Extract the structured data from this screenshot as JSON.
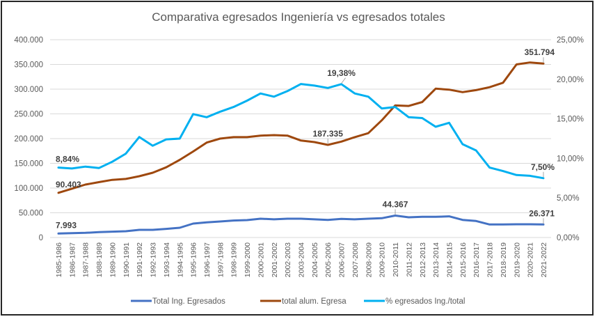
{
  "chart_data": {
    "type": "line",
    "title": "Comparativa egresados Ingeniería vs egresados totales",
    "xlabel": "",
    "ylabel": "",
    "y2label": "",
    "ylim": [
      0,
      400000
    ],
    "y2lim": [
      0,
      25
    ],
    "grid": true,
    "legend_position": "bottom",
    "y_ticks": [
      "0",
      "50.000",
      "100.000",
      "150.000",
      "200.000",
      "250.000",
      "300.000",
      "350.000",
      "400.000"
    ],
    "y2_ticks": [
      "0,00%",
      "5,00%",
      "10,00%",
      "15,00%",
      "20,00%",
      "25,00%"
    ],
    "categories": [
      "1985-1986",
      "1986-1987",
      "1987-1988",
      "1988-1989",
      "1989-1990",
      "1990-1991",
      "1991-1992",
      "1992-1993",
      "1993-1994",
      "1994-1995",
      "1995-1996",
      "1996-1997",
      "1997-1998",
      "1998-1999",
      "1999-2000",
      "2000-2001",
      "2001-2002",
      "2002-2003",
      "2003-2004",
      "2004-2005",
      "2005-2006",
      "2006-2007",
      "2007-2008",
      "2008-2009",
      "2009-2010",
      "2010-2011",
      "2011-2012",
      "2012-2013",
      "2013-2014",
      "2014-2015",
      "2015-2016",
      "2016-2017",
      "2017-2018",
      "2018-2019",
      "2019-2020",
      "2020-2021",
      "2021-2022"
    ],
    "series": [
      {
        "name": "Total Ing. Egresados",
        "axis": "left",
        "color": "#4472C4",
        "values": [
          7993,
          8900,
          9400,
          10800,
          11800,
          12700,
          15500,
          15500,
          17400,
          19700,
          28200,
          30500,
          32400,
          34300,
          35200,
          38000,
          36700,
          38000,
          38000,
          36700,
          35700,
          37600,
          36700,
          38000,
          39000,
          44367,
          40900,
          41800,
          41800,
          42800,
          35700,
          33400,
          26300,
          26300,
          26800,
          26800,
          26371
        ],
        "labels": [
          {
            "index": 0,
            "text": "7.993"
          },
          {
            "index": 25,
            "text": "44.367"
          },
          {
            "index": 36,
            "text": "26.371"
          }
        ]
      },
      {
        "name": "total alum. Egresa",
        "axis": "left",
        "color": "#9E480E",
        "values": [
          90403,
          98700,
          107000,
          112000,
          116600,
          118400,
          124000,
          131000,
          142000,
          157000,
          174000,
          192000,
          200000,
          203000,
          203000,
          206000,
          207000,
          206000,
          196000,
          193000,
          187335,
          194000,
          203000,
          211000,
          237000,
          267000,
          266000,
          274000,
          301000,
          299000,
          294000,
          298000,
          304000,
          313000,
          350000,
          354000,
          351794
        ],
        "labels": [
          {
            "index": 0,
            "text": "90.403"
          },
          {
            "index": 20,
            "text": "187.335"
          },
          {
            "index": 36,
            "text": "351.794"
          }
        ]
      },
      {
        "name": "% egresados Ing./total",
        "axis": "right",
        "color": "#00B0F0",
        "values": [
          8.84,
          8.72,
          8.96,
          8.78,
          9.58,
          10.6,
          12.7,
          11.6,
          12.4,
          12.5,
          15.6,
          15.2,
          15.9,
          16.5,
          17.3,
          18.2,
          17.8,
          18.5,
          19.4,
          19.2,
          18.9,
          19.38,
          18.2,
          17.8,
          16.3,
          16.5,
          15.2,
          15.1,
          14.0,
          14.5,
          11.8,
          11.0,
          8.84,
          8.4,
          7.9,
          7.8,
          7.5
        ],
        "labels": [
          {
            "index": 0,
            "text": "8,84%"
          },
          {
            "index": 21,
            "text": "19,38%"
          },
          {
            "index": 36,
            "text": "7,50%"
          }
        ]
      }
    ]
  }
}
